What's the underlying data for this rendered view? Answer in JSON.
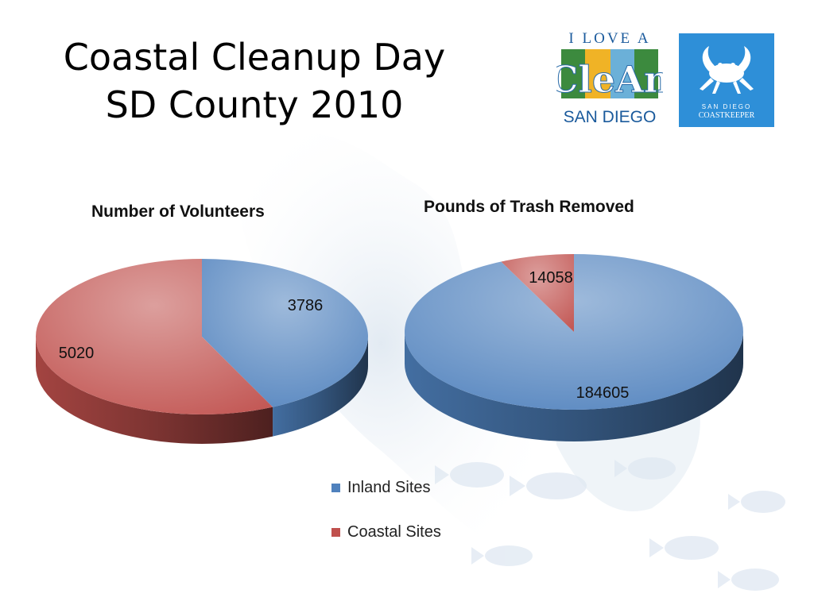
{
  "slide": {
    "title_line1": "Coastal Cleanup Day",
    "title_line2": "SD County 2010"
  },
  "logos": {
    "ilove": {
      "top": "I LOVE A",
      "mid": "CleAn",
      "bottom": "SAN DIEGO"
    },
    "coastkeeper": {
      "top": "SAN DIEGO",
      "bottom": "COASTKEEPER"
    }
  },
  "chart_data": [
    {
      "type": "pie",
      "title": "Number of Volunteers",
      "categories": [
        "Inland Sites",
        "Coastal Sites"
      ],
      "values": [
        3786,
        5020
      ],
      "colors": [
        "#4f81bd",
        "#c0504d"
      ]
    },
    {
      "type": "pie",
      "title": "Pounds of Trash Removed",
      "categories": [
        "Inland Sites",
        "Coastal Sites"
      ],
      "values": [
        184605,
        14058
      ],
      "colors": [
        "#4f81bd",
        "#c0504d"
      ]
    }
  ],
  "legend": {
    "position": "bottom-center",
    "items": [
      {
        "label": "Inland Sites",
        "color": "#4f81bd"
      },
      {
        "label": "Coastal Sites",
        "color": "#c0504d"
      }
    ]
  }
}
